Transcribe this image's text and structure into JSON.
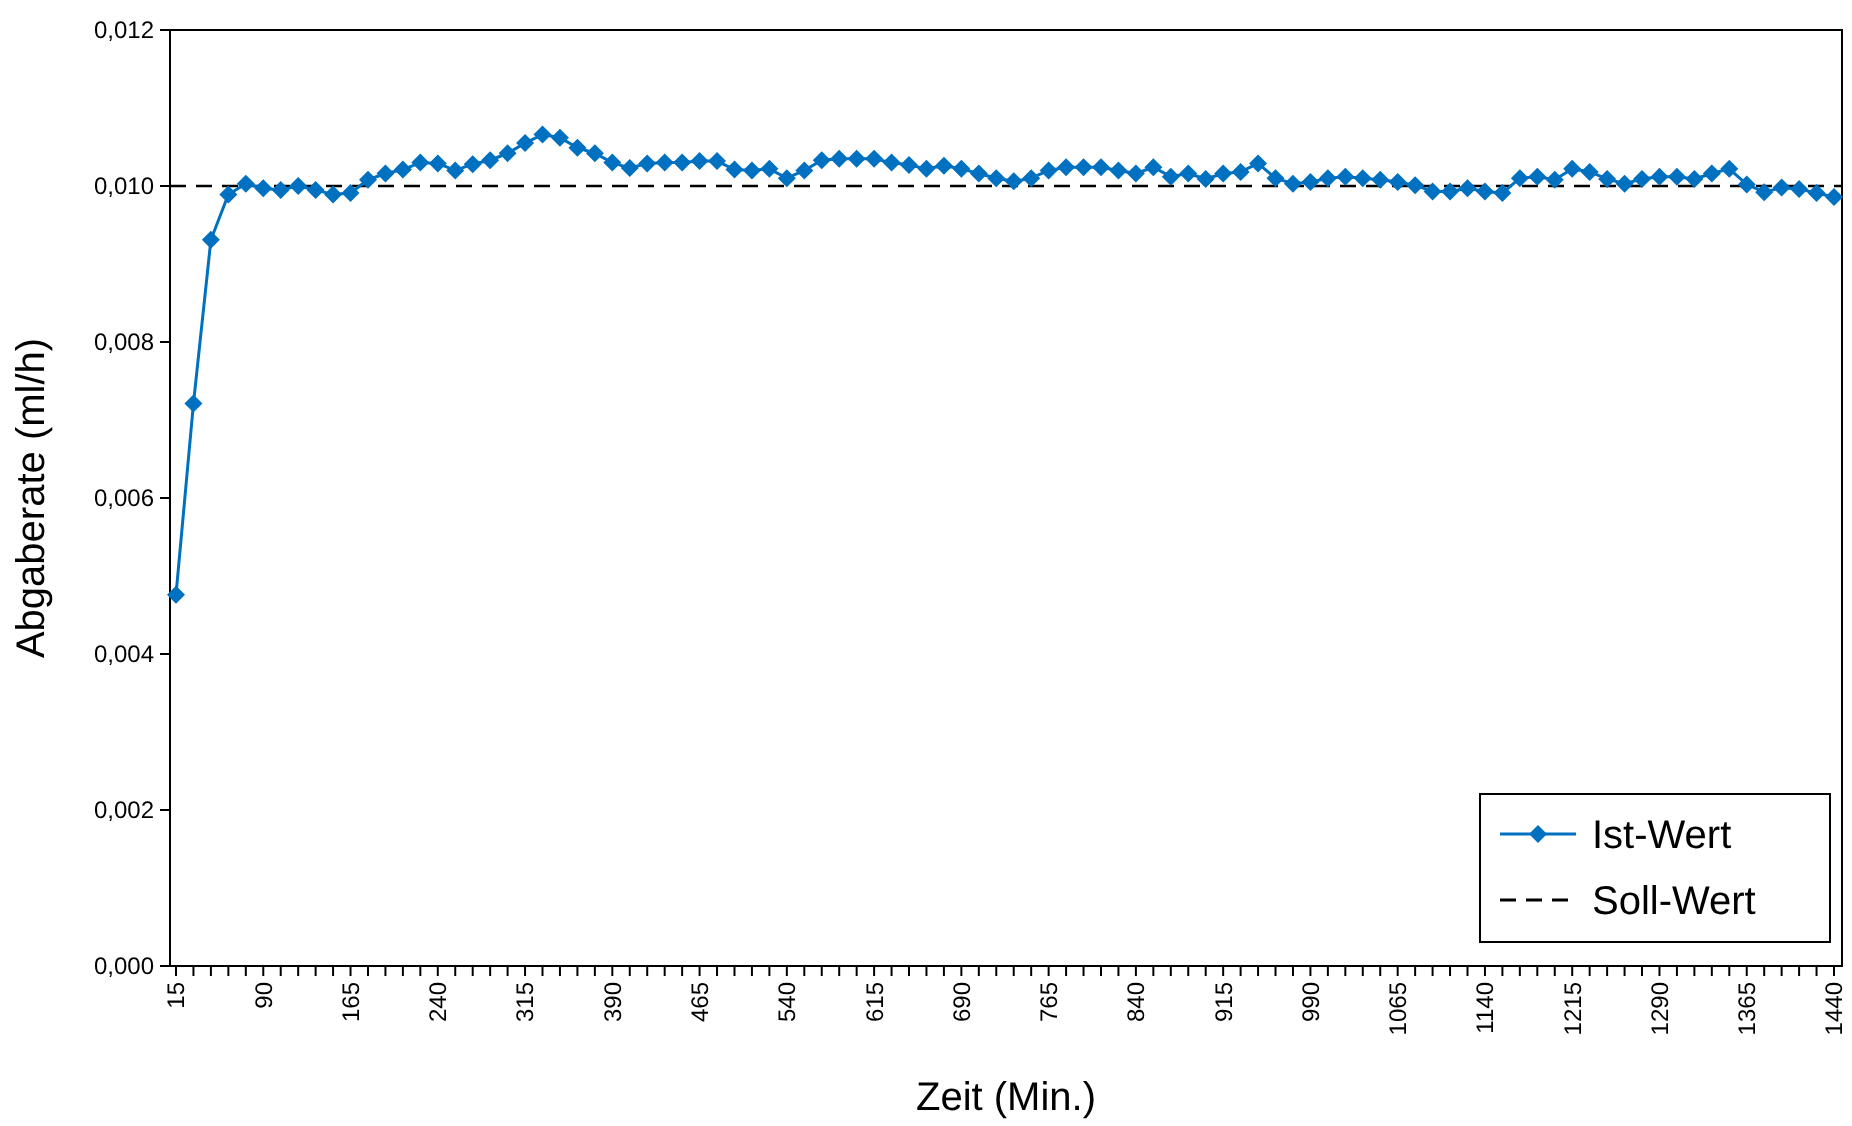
{
  "chart_data": {
    "type": "line",
    "xlabel": "Zeit (Min.)",
    "ylabel": "Abgaberate (ml/h)",
    "x": [
      15,
      30,
      45,
      60,
      75,
      90,
      105,
      120,
      135,
      150,
      165,
      180,
      195,
      210,
      225,
      240,
      255,
      270,
      285,
      300,
      315,
      330,
      345,
      360,
      375,
      390,
      405,
      420,
      435,
      450,
      465,
      480,
      495,
      510,
      525,
      540,
      555,
      570,
      585,
      600,
      615,
      630,
      645,
      660,
      675,
      690,
      705,
      720,
      735,
      750,
      765,
      780,
      795,
      810,
      825,
      840,
      855,
      870,
      885,
      900,
      915,
      930,
      945,
      960,
      975,
      990,
      1005,
      1020,
      1035,
      1050,
      1065,
      1080,
      1095,
      1110,
      1125,
      1140,
      1155,
      1170,
      1185,
      1200,
      1215,
      1230,
      1245,
      1260,
      1275,
      1290,
      1305,
      1320,
      1335,
      1350,
      1365,
      1380,
      1395,
      1410,
      1425,
      1440
    ],
    "series": [
      {
        "name": "Ist-Wert",
        "color": "#0070c0",
        "marker": "diamond",
        "line_style": "solid",
        "values": [
          0.00476,
          0.00721,
          0.00931,
          0.00989,
          0.01003,
          0.00997,
          0.00995,
          0.01,
          0.00995,
          0.00989,
          0.00991,
          0.01008,
          0.01016,
          0.01021,
          0.0103,
          0.01029,
          0.0102,
          0.01028,
          0.01033,
          0.01042,
          0.01055,
          0.01066,
          0.01062,
          0.01049,
          0.01042,
          0.0103,
          0.01023,
          0.01029,
          0.0103,
          0.0103,
          0.01032,
          0.01032,
          0.01021,
          0.0102,
          0.01022,
          0.0101,
          0.0102,
          0.01033,
          0.01035,
          0.01035,
          0.01035,
          0.0103,
          0.01027,
          0.01022,
          0.01026,
          0.01022,
          0.01016,
          0.0101,
          0.01006,
          0.0101,
          0.0102,
          0.01024,
          0.01024,
          0.01024,
          0.0102,
          0.01016,
          0.01024,
          0.01012,
          0.01016,
          0.01009,
          0.01016,
          0.01018,
          0.01029,
          0.0101,
          0.01003,
          0.01005,
          0.0101,
          0.01012,
          0.0101,
          0.01008,
          0.01005,
          0.01001,
          0.00993,
          0.00993,
          0.00997,
          0.00993,
          0.00991,
          0.0101,
          0.01012,
          0.01008,
          0.01022,
          0.01018,
          0.01009,
          0.01003,
          0.01009,
          0.01012,
          0.01012,
          0.01009,
          0.01016,
          0.01022,
          0.01002,
          0.00992,
          0.00998,
          0.00996,
          0.00991,
          0.00986
        ]
      }
    ],
    "ref_lines": [
      {
        "axis": "y",
        "value": 0.01,
        "label": "Soll-Wert",
        "color": "#000000",
        "line_style": "dashed"
      }
    ],
    "xlim": [
      15,
      1440
    ],
    "xticks": [
      15,
      {
        "value": 30,
        "label": null
      },
      {
        "value": 45,
        "label": null
      },
      {
        "value": 60,
        "label": null
      },
      {
        "value": 75,
        "label": null
      },
      90,
      {
        "value": 105,
        "label": null
      },
      {
        "value": 120,
        "label": null
      },
      {
        "value": 135,
        "label": null
      },
      {
        "value": 150,
        "label": null
      },
      165,
      {
        "value": 180,
        "label": null
      },
      {
        "value": 195,
        "label": null
      },
      {
        "value": 210,
        "label": null
      },
      {
        "value": 225,
        "label": null
      },
      240,
      {
        "value": 255,
        "label": null
      },
      {
        "value": 270,
        "label": null
      },
      {
        "value": 285,
        "label": null
      },
      {
        "value": 300,
        "label": null
      },
      315,
      {
        "value": 330,
        "label": null
      },
      {
        "value": 345,
        "label": null
      },
      {
        "value": 360,
        "label": null
      },
      {
        "value": 375,
        "label": null
      },
      390,
      {
        "value": 405,
        "label": null
      },
      {
        "value": 420,
        "label": null
      },
      {
        "value": 435,
        "label": null
      },
      {
        "value": 450,
        "label": null
      },
      465,
      {
        "value": 480,
        "label": null
      },
      {
        "value": 495,
        "label": null
      },
      {
        "value": 510,
        "label": null
      },
      {
        "value": 525,
        "label": null
      },
      540,
      {
        "value": 555,
        "label": null
      },
      {
        "value": 570,
        "label": null
      },
      {
        "value": 585,
        "label": null
      },
      {
        "value": 600,
        "label": null
      },
      615,
      {
        "value": 630,
        "label": null
      },
      {
        "value": 645,
        "label": null
      },
      {
        "value": 660,
        "label": null
      },
      {
        "value": 675,
        "label": null
      },
      690,
      {
        "value": 705,
        "label": null
      },
      {
        "value": 720,
        "label": null
      },
      {
        "value": 735,
        "label": null
      },
      {
        "value": 750,
        "label": null
      },
      765,
      {
        "value": 780,
        "label": null
      },
      {
        "value": 795,
        "label": null
      },
      {
        "value": 810,
        "label": null
      },
      {
        "value": 825,
        "label": null
      },
      840,
      {
        "value": 855,
        "label": null
      },
      {
        "value": 870,
        "label": null
      },
      {
        "value": 885,
        "label": null
      },
      {
        "value": 900,
        "label": null
      },
      915,
      {
        "value": 930,
        "label": null
      },
      {
        "value": 945,
        "label": null
      },
      {
        "value": 960,
        "label": null
      },
      {
        "value": 975,
        "label": null
      },
      990,
      {
        "value": 1005,
        "label": null
      },
      {
        "value": 1020,
        "label": null
      },
      {
        "value": 1035,
        "label": null
      },
      {
        "value": 1050,
        "label": null
      },
      1065,
      {
        "value": 1080,
        "label": null
      },
      {
        "value": 1095,
        "label": null
      },
      {
        "value": 1110,
        "label": null
      },
      {
        "value": 1125,
        "label": null
      },
      1140,
      {
        "value": 1155,
        "label": null
      },
      {
        "value": 1170,
        "label": null
      },
      {
        "value": 1185,
        "label": null
      },
      {
        "value": 1200,
        "label": null
      },
      1215,
      {
        "value": 1230,
        "label": null
      },
      {
        "value": 1245,
        "label": null
      },
      {
        "value": 1260,
        "label": null
      },
      {
        "value": 1275,
        "label": null
      },
      1290,
      {
        "value": 1305,
        "label": null
      },
      {
        "value": 1320,
        "label": null
      },
      {
        "value": 1335,
        "label": null
      },
      {
        "value": 1350,
        "label": null
      },
      1365,
      {
        "value": 1380,
        "label": null
      },
      {
        "value": 1395,
        "label": null
      },
      {
        "value": 1410,
        "label": null
      },
      {
        "value": 1425,
        "label": null
      },
      1440
    ],
    "ylim": [
      0,
      0.012
    ],
    "yticks": [
      {
        "value": 0,
        "label": "0,000"
      },
      {
        "value": 0.002,
        "label": "0,002"
      },
      {
        "value": 0.004,
        "label": "0,004"
      },
      {
        "value": 0.006,
        "label": "0,006"
      },
      {
        "value": 0.008,
        "label": "0,008"
      },
      {
        "value": 0.01,
        "label": "0,010"
      },
      {
        "value": 0.012,
        "label": "0,012"
      }
    ],
    "grid": false,
    "legend": "bottom right"
  }
}
